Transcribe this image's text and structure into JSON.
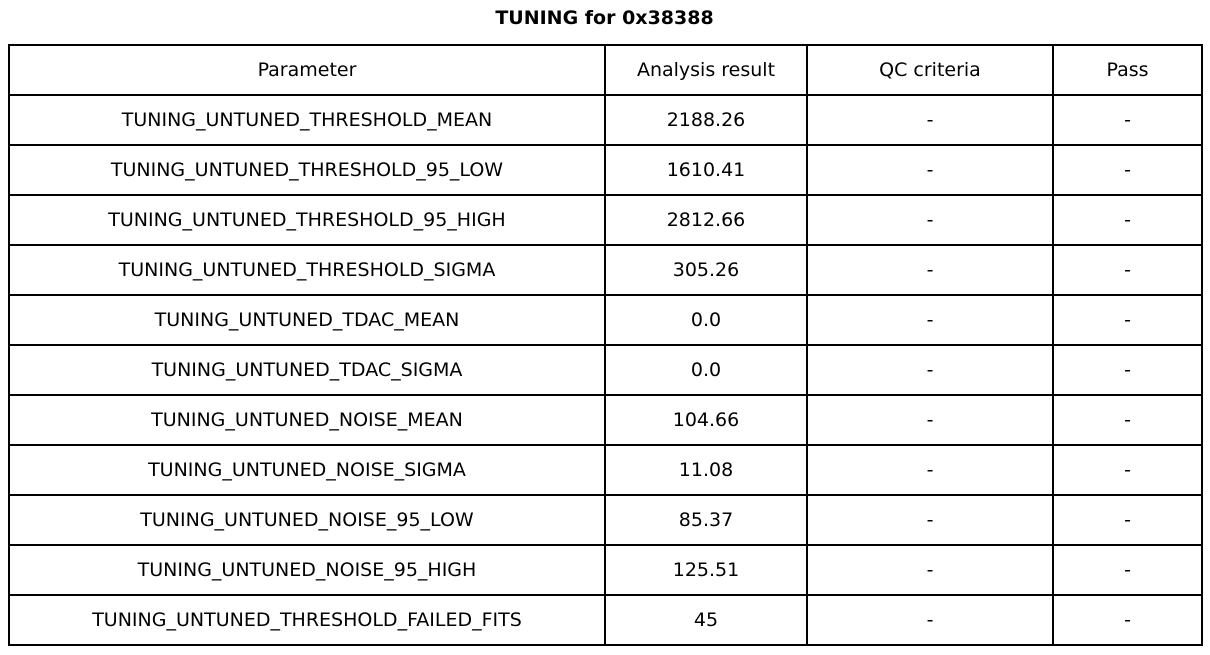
{
  "chart_data": {
    "type": "table",
    "title": "TUNING for 0x38388",
    "columns": [
      "Parameter",
      "Analysis result",
      "QC criteria",
      "Pass"
    ],
    "rows": [
      [
        "TUNING_UNTUNED_THRESHOLD_MEAN",
        "2188.26",
        "-",
        "-"
      ],
      [
        "TUNING_UNTUNED_THRESHOLD_95_LOW",
        "1610.41",
        "-",
        "-"
      ],
      [
        "TUNING_UNTUNED_THRESHOLD_95_HIGH",
        "2812.66",
        "-",
        "-"
      ],
      [
        "TUNING_UNTUNED_THRESHOLD_SIGMA",
        "305.26",
        "-",
        "-"
      ],
      [
        "TUNING_UNTUNED_TDAC_MEAN",
        "0.0",
        "-",
        "-"
      ],
      [
        "TUNING_UNTUNED_TDAC_SIGMA",
        "0.0",
        "-",
        "-"
      ],
      [
        "TUNING_UNTUNED_NOISE_MEAN",
        "104.66",
        "-",
        "-"
      ],
      [
        "TUNING_UNTUNED_NOISE_SIGMA",
        "11.08",
        "-",
        "-"
      ],
      [
        "TUNING_UNTUNED_NOISE_95_LOW",
        "85.37",
        "-",
        "-"
      ],
      [
        "TUNING_UNTUNED_NOISE_95_HIGH",
        "125.51",
        "-",
        "-"
      ],
      [
        "TUNING_UNTUNED_THRESHOLD_FAILED_FITS",
        "45",
        "-",
        "-"
      ]
    ],
    "layout": {
      "border_color": "#000000",
      "text_color": "#000000",
      "background": "#ffffff",
      "title_position": "top-center"
    }
  }
}
